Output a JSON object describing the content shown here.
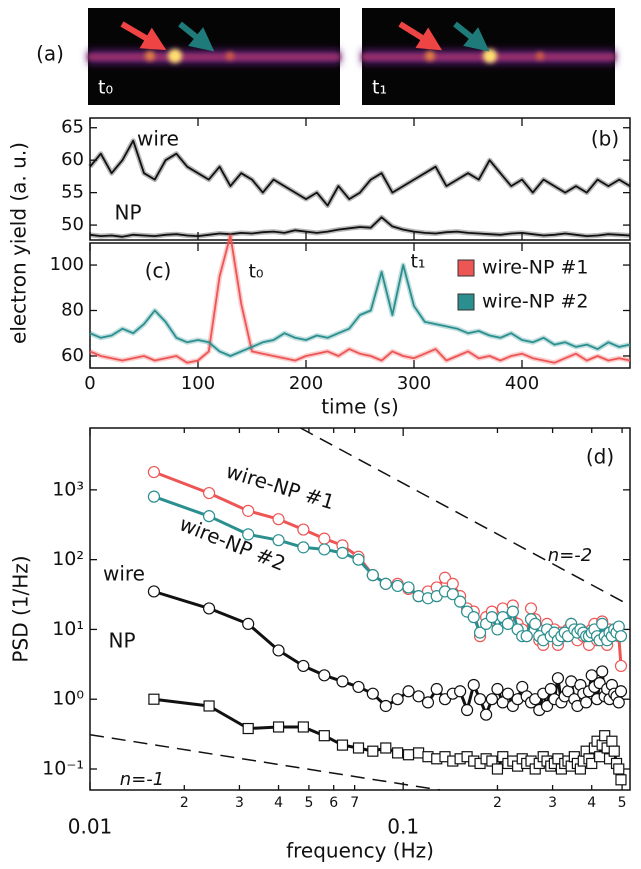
{
  "panel_a": {
    "label": "(a)",
    "frames": [
      "t₀",
      "t₁"
    ]
  },
  "chart_data": [
    {
      "type": "line",
      "panel_label": "(b)",
      "ylabel": "electron yield (a. u.)",
      "halo": true,
      "x": [
        0,
        10,
        20,
        30,
        40,
        50,
        60,
        70,
        80,
        90,
        100,
        110,
        120,
        130,
        140,
        150,
        160,
        170,
        180,
        190,
        200,
        210,
        220,
        230,
        240,
        250,
        260,
        270,
        280,
        290,
        300,
        310,
        320,
        330,
        340,
        350,
        360,
        370,
        380,
        390,
        400,
        410,
        420,
        430,
        440,
        450,
        460,
        470,
        480,
        490,
        500
      ],
      "xlim": [
        0,
        500
      ],
      "xticks": [
        0,
        100,
        200,
        300,
        400
      ],
      "ylim": [
        47.7,
        66.5
      ],
      "yticks": [
        50,
        55,
        60,
        65
      ],
      "series": [
        {
          "name": "wire",
          "color": "#111111",
          "values": [
            59,
            61,
            58,
            60,
            63,
            58,
            57,
            60,
            61,
            59,
            58,
            57,
            59,
            56,
            58,
            57,
            55,
            57,
            56,
            55,
            54,
            55,
            53,
            56,
            54,
            55,
            57,
            58,
            55,
            56,
            57,
            58,
            59,
            56,
            57,
            58,
            57,
            60,
            58,
            56,
            57,
            55,
            57,
            56,
            55,
            56,
            55,
            57,
            56,
            57,
            56
          ]
        },
        {
          "name": "NP",
          "color": "#111111",
          "values": [
            48.5,
            48.3,
            48.4,
            48.2,
            48.5,
            48.4,
            48.3,
            48.5,
            48.6,
            48.4,
            48.3,
            48.5,
            48.7,
            48.6,
            48.8,
            48.7,
            48.9,
            49,
            48.8,
            49.2,
            49,
            48.8,
            49,
            49.3,
            49.5,
            49.7,
            49.6,
            51.2,
            49.8,
            49.3,
            49,
            48.8,
            48.7,
            48.9,
            49,
            48.8,
            48.7,
            48.6,
            48.5,
            48.7,
            48.8,
            48.6,
            48.4,
            48.5,
            48.7,
            48.5,
            48.3,
            48.4,
            48.6,
            48.5,
            48.4
          ]
        }
      ]
    },
    {
      "type": "line",
      "panel_label": "(c)",
      "xlabel": "time (s)",
      "halo": true,
      "legend": "upper right",
      "annotations": [
        "t₀",
        "t₁"
      ],
      "x": [
        0,
        10,
        20,
        30,
        40,
        50,
        60,
        70,
        80,
        90,
        100,
        110,
        120,
        130,
        140,
        150,
        160,
        170,
        180,
        190,
        200,
        210,
        220,
        230,
        240,
        250,
        260,
        270,
        280,
        290,
        300,
        310,
        320,
        330,
        340,
        350,
        360,
        370,
        380,
        390,
        400,
        410,
        420,
        430,
        440,
        450,
        460,
        470,
        480,
        490,
        500
      ],
      "xlim": [
        0,
        500
      ],
      "xticks": [
        0,
        100,
        200,
        300,
        400
      ],
      "ylim": [
        54.7,
        109.7
      ],
      "yticks": [
        60,
        80,
        100
      ],
      "series": [
        {
          "name": "wire-NP #1",
          "color": "#ee5555",
          "values": [
            62,
            60,
            59,
            58,
            59,
            60,
            58,
            59,
            60,
            57,
            58,
            62,
            95,
            113,
            83,
            62,
            61,
            60,
            59,
            58,
            60,
            61,
            62,
            60,
            63,
            61,
            60,
            58,
            62,
            60,
            59,
            61,
            63,
            58,
            60,
            62,
            59,
            60,
            58,
            60,
            61,
            59,
            58,
            57,
            59,
            61,
            58,
            60,
            58,
            59,
            58
          ]
        },
        {
          "name": "wire-NP #2",
          "color": "#2b8f8f",
          "values": [
            70,
            68,
            69,
            72,
            70,
            74,
            80,
            75,
            68,
            66,
            67,
            66,
            62,
            60,
            62,
            64,
            66,
            67,
            70,
            68,
            67,
            69,
            68,
            70,
            72,
            78,
            80,
            97,
            78,
            100,
            82,
            75,
            74,
            73,
            72,
            70,
            71,
            69,
            68,
            70,
            67,
            66,
            68,
            65,
            66,
            64,
            65,
            63,
            66,
            64,
            65
          ]
        }
      ]
    },
    {
      "type": "line",
      "panel_label": "(d)",
      "xlabel": "frequency (Hz)",
      "ylabel": "PSD (1/Hz)",
      "log_x": true,
      "log_y": true,
      "x": [
        0.016,
        0.024,
        0.032,
        0.04,
        0.048,
        0.056,
        0.064,
        0.072,
        0.08,
        0.088,
        0.096,
        0.104,
        0.112,
        0.12,
        0.128,
        0.136,
        0.144,
        0.152,
        0.16,
        0.168,
        0.176,
        0.184,
        0.192,
        0.2,
        0.208,
        0.216,
        0.224,
        0.232,
        0.24,
        0.248,
        0.256,
        0.264,
        0.272,
        0.28,
        0.288,
        0.296,
        0.304,
        0.312,
        0.32,
        0.328,
        0.336,
        0.344,
        0.352,
        0.36,
        0.368,
        0.376,
        0.384,
        0.392,
        0.4,
        0.408,
        0.416,
        0.424,
        0.432,
        0.44,
        0.448,
        0.456,
        0.464,
        0.472,
        0.48,
        0.488,
        0.496
      ],
      "xlim": [
        0.01,
        0.53
      ],
      "xticks": [
        0.01,
        {
          "value": 0.02,
          "label": "2"
        },
        {
          "value": 0.03,
          "label": "3"
        },
        {
          "value": 0.04,
          "label": "4"
        },
        {
          "value": 0.05,
          "label": "5"
        },
        {
          "value": 0.06,
          "label": "6"
        },
        {
          "value": 0.07,
          "label": "7"
        },
        0.1,
        {
          "value": 0.2,
          "label": "2"
        },
        {
          "value": 0.3,
          "label": "3"
        },
        {
          "value": 0.4,
          "label": "4"
        },
        {
          "value": 0.5,
          "label": "5"
        }
      ],
      "ylim": [
        0.05,
        7700
      ],
      "yticks": [
        {
          "value": 0.1,
          "label": "10⁻¹"
        },
        {
          "value": 1,
          "label": "10⁰"
        },
        {
          "value": 10,
          "label": "10¹"
        },
        {
          "value": 100,
          "label": "10²"
        },
        {
          "value": 1000,
          "label": "10³"
        }
      ],
      "series": [
        {
          "name": "wire-NP #1",
          "color": "#ee5555",
          "marker": "circle",
          "values": [
            1800,
            900,
            500,
            380,
            270,
            200,
            160,
            110,
            60,
            45,
            45,
            38,
            30,
            35,
            40,
            55,
            45,
            30,
            20,
            18,
            8,
            15,
            18,
            12,
            20,
            14,
            22,
            12,
            10,
            8,
            20,
            14,
            7,
            6,
            12,
            9,
            10,
            6,
            9,
            8,
            10,
            12,
            9,
            7,
            10,
            8,
            9,
            6,
            10,
            12,
            7,
            9,
            13,
            8,
            6,
            10,
            8,
            10,
            9,
            8,
            3
          ]
        },
        {
          "name": "wire-NP #2",
          "color": "#2b8f8f",
          "marker": "circle",
          "values": [
            800,
            420,
            230,
            190,
            150,
            140,
            125,
            100,
            60,
            45,
            42,
            40,
            30,
            28,
            30,
            35,
            32,
            25,
            18,
            15,
            9,
            12,
            15,
            10,
            15,
            12,
            18,
            10,
            8,
            8,
            14,
            12,
            8,
            7,
            10,
            8,
            9,
            7,
            8,
            9,
            8,
            12,
            10,
            9,
            10,
            9,
            8,
            8,
            9,
            10,
            8,
            7,
            12,
            8,
            7,
            9,
            8,
            10,
            9,
            11,
            8
          ]
        },
        {
          "name": "wire",
          "color": "#111111",
          "marker": "circle",
          "values": [
            35,
            20,
            12,
            5,
            3,
            2.2,
            1.8,
            1.5,
            1.2,
            0.8,
            1,
            1.3,
            1.1,
            0.9,
            1.4,
            1,
            1.2,
            1.3,
            0.7,
            1.6,
            1,
            0.6,
            1,
            1.4,
            0.9,
            1.2,
            0.8,
            1,
            1.5,
            1.1,
            0.9,
            1,
            0.7,
            1.2,
            0.8,
            1.4,
            1,
            2,
            0.9,
            1.1,
            1.3,
            1.8,
            1,
            0.8,
            1.6,
            1.2,
            0.9,
            1.3,
            2.2,
            1.5,
            1,
            1.7,
            2.5,
            1.1,
            1.4,
            1,
            1.6,
            1.2,
            1.1,
            0.9,
            1.3
          ]
        },
        {
          "name": "NP",
          "color": "#111111",
          "marker": "square",
          "values": [
            1,
            0.8,
            0.38,
            0.4,
            0.4,
            0.3,
            0.22,
            0.2,
            0.18,
            0.2,
            0.17,
            0.16,
            0.17,
            0.15,
            0.14,
            0.15,
            0.13,
            0.14,
            0.15,
            0.13,
            0.12,
            0.14,
            0.13,
            0.1,
            0.15,
            0.12,
            0.13,
            0.11,
            0.14,
            0.12,
            0.13,
            0.1,
            0.12,
            0.15,
            0.13,
            0.11,
            0.12,
            0.14,
            0.1,
            0.12,
            0.13,
            0.11,
            0.15,
            0.12,
            0.1,
            0.13,
            0.18,
            0.14,
            0.12,
            0.2,
            0.25,
            0.15,
            0.22,
            0.3,
            0.2,
            0.14,
            0.25,
            0.18,
            0.12,
            0.1,
            0.07
          ]
        }
      ],
      "reference_lines": [
        {
          "label": "n=-2",
          "x": [
            0.047,
            0.53
          ],
          "y": [
            7700,
            22
          ]
        },
        {
          "label": "n=-1",
          "x": [
            0.01,
            0.131
          ],
          "y": [
            0.31,
            0.05
          ]
        }
      ]
    }
  ]
}
